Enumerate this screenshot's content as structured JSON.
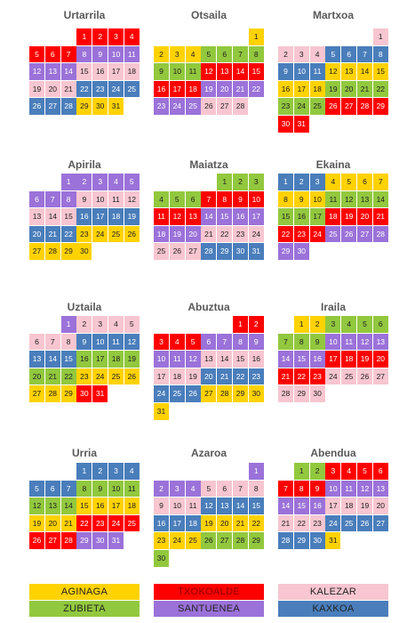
{
  "months": [
    {
      "name": "Urtarrila",
      "runs": [
        {
          "color": "#ff0000",
          "days": [
            1,
            2,
            3,
            4,
            5,
            6,
            7
          ]
        },
        {
          "color": "#9b72d9",
          "days": [
            8,
            9,
            10,
            11,
            12,
            13,
            14
          ]
        },
        {
          "color": "#f7c6d0",
          "days": [
            15,
            16,
            17,
            18,
            19,
            20,
            21
          ]
        },
        {
          "color": "#4a7ebb",
          "days": [
            22,
            23,
            24,
            25,
            26,
            27,
            28
          ]
        },
        {
          "color": "#ffd200",
          "days": [
            29,
            30,
            31
          ]
        }
      ]
    },
    {
      "name": "Otsaila",
      "runs": [
        {
          "color": "#ffd200",
          "days": [
            1,
            2,
            3,
            4
          ]
        },
        {
          "color": "#92c83e",
          "days": [
            5,
            6,
            7,
            8,
            9,
            10,
            11
          ]
        },
        {
          "color": "#ff0000",
          "days": [
            12,
            13,
            14,
            15,
            16,
            17,
            18
          ]
        },
        {
          "color": "#9b72d9",
          "days": [
            19,
            20,
            21,
            22,
            23,
            24,
            25
          ]
        },
        {
          "color": "#f7c6d0",
          "days": [
            26,
            27,
            28
          ]
        }
      ]
    },
    {
      "name": "Martxoa",
      "runs": [
        {
          "color": "#f7c6d0",
          "days": [
            1,
            2,
            3,
            4
          ]
        },
        {
          "color": "#4a7ebb",
          "days": [
            5,
            6,
            7,
            8,
            9,
            10,
            11
          ]
        },
        {
          "color": "#ffd200",
          "days": [
            12,
            13,
            14,
            15,
            16,
            17,
            18
          ]
        },
        {
          "color": "#92c83e",
          "days": [
            19,
            20,
            21,
            22,
            23,
            24,
            25
          ]
        },
        {
          "color": "#ff0000",
          "days": [
            26,
            27,
            28,
            29,
            30,
            31
          ]
        }
      ]
    },
    {
      "name": "Apirila",
      "runs": [
        {
          "color": "#9b72d9",
          "days": [
            1,
            2,
            3,
            4,
            5,
            6,
            7,
            8
          ]
        },
        {
          "color": "#f7c6d0",
          "days": [
            9,
            10,
            11,
            12,
            13,
            14,
            15
          ]
        },
        {
          "color": "#4a7ebb",
          "days": [
            16,
            17,
            18,
            19,
            20,
            21,
            22
          ]
        },
        {
          "color": "#ffd200",
          "days": [
            23,
            24,
            25,
            26,
            27,
            28,
            29,
            30
          ]
        }
      ]
    },
    {
      "name": "Maiatza",
      "runs": [
        {
          "color": "#92c83e",
          "days": [
            1,
            2,
            3,
            4,
            5,
            6
          ]
        },
        {
          "color": "#ff0000",
          "days": [
            7,
            8,
            9,
            10,
            11,
            12,
            13
          ]
        },
        {
          "color": "#9b72d9",
          "days": [
            14,
            15,
            16,
            17,
            18,
            19,
            20
          ]
        },
        {
          "color": "#f7c6d0",
          "days": [
            21,
            22,
            23,
            24,
            25,
            26,
            27
          ]
        },
        {
          "color": "#4a7ebb",
          "days": [
            28,
            29,
            30,
            31
          ]
        }
      ]
    },
    {
      "name": "Ekaina",
      "runs": [
        {
          "color": "#4a7ebb",
          "days": [
            1,
            2,
            3
          ]
        },
        {
          "color": "#ffd200",
          "days": [
            4,
            5,
            6,
            7,
            8,
            9,
            10
          ]
        },
        {
          "color": "#92c83e",
          "days": [
            11,
            12,
            13,
            14,
            15,
            16,
            17
          ]
        },
        {
          "color": "#ff0000",
          "days": [
            18,
            19,
            20,
            21,
            22,
            23,
            24
          ]
        },
        {
          "color": "#9b72d9",
          "days": [
            25,
            26,
            27,
            28,
            29,
            30
          ]
        }
      ]
    },
    {
      "name": "Uztaila",
      "runs": [
        {
          "color": "#9b72d9",
          "days": [
            1
          ]
        },
        {
          "color": "#f7c6d0",
          "days": [
            2,
            3,
            4,
            5,
            6,
            7,
            8
          ]
        },
        {
          "color": "#4a7ebb",
          "days": [
            9,
            10,
            11,
            12,
            13,
            14,
            15
          ]
        },
        {
          "color": "#92c83e",
          "days": [
            16,
            17,
            18,
            19,
            20,
            21,
            22
          ]
        },
        {
          "color": "#ffd200",
          "days": [
            23,
            24,
            25,
            26,
            27,
            28,
            29
          ]
        },
        {
          "color": "#ff0000",
          "days": [
            30,
            31
          ]
        }
      ]
    },
    {
      "name": "Abuztua",
      "runs": [
        {
          "color": "#ff0000",
          "days": [
            1,
            2,
            3,
            4,
            5
          ]
        },
        {
          "color": "#9b72d9",
          "days": [
            6,
            7,
            8,
            9,
            10,
            11,
            12
          ]
        },
        {
          "color": "#f7c6d0",
          "days": [
            13,
            14,
            15,
            16,
            17,
            18,
            19
          ]
        },
        {
          "color": "#4a7ebb",
          "days": [
            20,
            21,
            22,
            23,
            24,
            25,
            26
          ]
        },
        {
          "color": "#ffd200",
          "days": [
            27,
            28,
            29,
            30,
            31
          ]
        }
      ]
    },
    {
      "name": "Iraila",
      "runs": [
        {
          "color": "#ffd200",
          "days": [
            1,
            2
          ]
        },
        {
          "color": "#92c83e",
          "days": [
            3,
            4,
            5,
            6,
            7,
            8,
            9
          ]
        },
        {
          "color": "#9b72d9",
          "days": [
            10,
            11,
            12,
            13,
            14,
            15,
            16
          ]
        },
        {
          "color": "#ff0000",
          "days": [
            17,
            18,
            19,
            20,
            21,
            22,
            23
          ]
        },
        {
          "color": "#f7c6d0",
          "days": [
            24,
            25,
            26,
            27,
            28,
            29,
            30
          ]
        }
      ]
    },
    {
      "name": "Urria",
      "runs": [
        {
          "color": "#4a7ebb",
          "days": [
            1,
            2,
            3,
            4,
            5,
            6,
            7
          ]
        },
        {
          "color": "#92c83e",
          "days": [
            8,
            9,
            10,
            11,
            12,
            13,
            14
          ]
        },
        {
          "color": "#ffd200",
          "days": [
            15,
            16,
            17,
            18,
            19,
            20,
            21
          ]
        },
        {
          "color": "#ff0000",
          "days": [
            22,
            23,
            24,
            25,
            26,
            27,
            28
          ]
        },
        {
          "color": "#9b72d9",
          "days": [
            29,
            30,
            31
          ]
        }
      ]
    },
    {
      "name": "Azaroa",
      "runs": [
        {
          "color": "#9b72d9",
          "days": [
            1,
            2,
            3,
            4
          ]
        },
        {
          "color": "#f7c6d0",
          "days": [
            5,
            6,
            7,
            8,
            9,
            10,
            11
          ]
        },
        {
          "color": "#4a7ebb",
          "days": [
            12,
            13,
            14,
            15,
            16,
            17,
            18
          ]
        },
        {
          "color": "#ffd200",
          "days": [
            19,
            20,
            21,
            22,
            23,
            24,
            25
          ]
        },
        {
          "color": "#92c83e",
          "days": [
            26,
            27,
            28,
            29,
            30
          ]
        }
      ]
    },
    {
      "name": "Abendua",
      "runs": [
        {
          "color": "#92c83e",
          "days": [
            1,
            2
          ]
        },
        {
          "color": "#ff0000",
          "days": [
            3,
            4,
            5,
            6,
            7,
            8,
            9
          ]
        },
        {
          "color": "#9b72d9",
          "days": [
            10,
            11,
            12,
            13,
            14,
            15,
            16
          ]
        },
        {
          "color": "#f7c6d0",
          "days": [
            17,
            18,
            19,
            20,
            21,
            22,
            23
          ]
        },
        {
          "color": "#4a7ebb",
          "days": [
            24,
            25,
            26,
            27,
            28,
            29,
            30
          ]
        },
        {
          "color": "#ffd200",
          "days": [
            31
          ]
        }
      ]
    }
  ],
  "legend": [
    {
      "label": "AGINAGA",
      "color": "#ffd200"
    },
    {
      "label": "TXOKOALDE",
      "color": "#ff0000"
    },
    {
      "label": "KALEZAR",
      "color": "#f7c6d0"
    },
    {
      "label": "ZUBIETA",
      "color": "#92c83e"
    },
    {
      "label": "SANTUENEA",
      "color": "#9b72d9"
    },
    {
      "label": "KAXKOA",
      "color": "#4a7ebb"
    }
  ]
}
